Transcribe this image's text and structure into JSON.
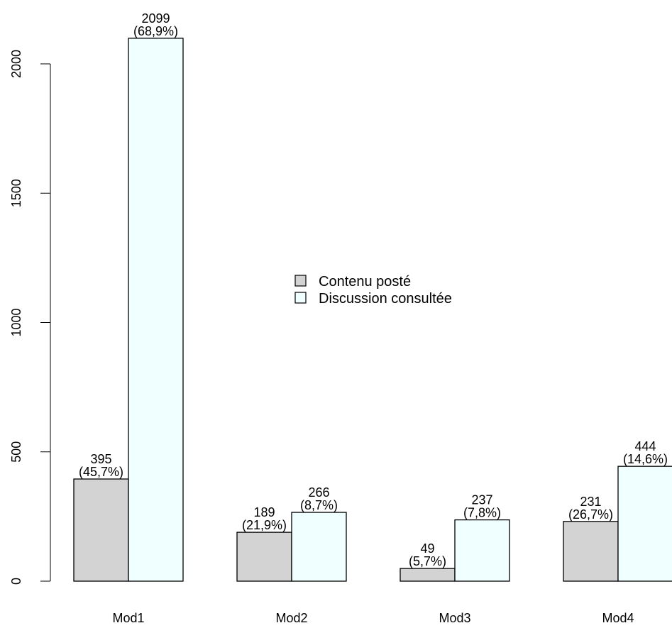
{
  "chart_data": {
    "type": "bar",
    "categories": [
      "Mod1",
      "Mod2",
      "Mod3",
      "Mod4"
    ],
    "series": [
      {
        "name": "Contenu posté",
        "color": "#d3d3d3",
        "values": [
          395,
          189,
          49,
          231
        ],
        "percent_labels": [
          "(45,7%)",
          "(21,9%)",
          "(5,7%)",
          "(26,7%)"
        ]
      },
      {
        "name": "Discussion consultée",
        "color": "#f0ffff",
        "values": [
          2099,
          266,
          237,
          444
        ],
        "percent_labels": [
          "(68,9%)",
          "(8,7%)",
          "(7,8%)",
          "(14,6%)"
        ]
      }
    ],
    "yticks": [
      0,
      500,
      1000,
      1500,
      2000
    ],
    "ylim": [
      0,
      2200
    ],
    "grid": false,
    "legend_position": "center",
    "title": "",
    "xlabel": "",
    "ylabel": ""
  }
}
